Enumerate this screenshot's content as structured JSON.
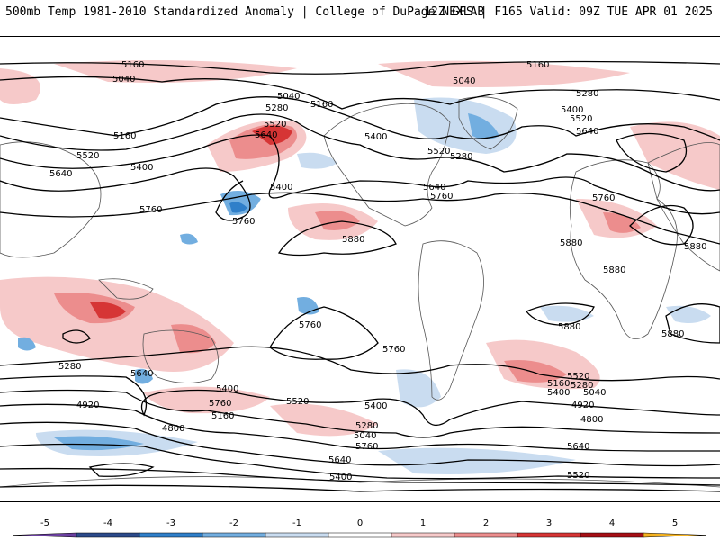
{
  "header": {
    "title": "500mb Temp 1981-2010 Standardized Anomaly | College of DuPage NEXLAB",
    "run_info": "12Z GFS | F165 Valid: 09Z TUE APR 01 2025"
  },
  "colors": {
    "anom": {
      "-5": "#6b3fa0",
      "-4": "#2b4a8a",
      "-3": "#2f7fc9",
      "-2": "#72aee0",
      "-1": "#c9dcf0",
      "1": "#f6c9c9",
      "2": "#ec8d8d",
      "3": "#d63535",
      "4": "#a50f15",
      "5": "#f5b21f"
    }
  },
  "colorbar": {
    "ticks": [
      "-5",
      "-4",
      "-3",
      "-2",
      "-1",
      "0",
      "1",
      "2",
      "3",
      "4",
      "5"
    ],
    "colors": [
      "#6b3fa0",
      "#2b4a8a",
      "#2f7fc9",
      "#72aee0",
      "#c9dcf0",
      "#ffffff",
      "#f6c9c9",
      "#ec8d8d",
      "#d63535",
      "#a50f15",
      "#f5b21f"
    ]
  },
  "contour_labels": [
    "5160",
    "5040",
    "5040",
    "5160",
    "5280",
    "5520",
    "5640",
    "5160",
    "5520",
    "5400",
    "5640",
    "5400",
    "5760",
    "5400",
    "5760",
    "5880",
    "5160",
    "5040",
    "5280",
    "5400",
    "5520",
    "5640",
    "5280",
    "5520",
    "5640",
    "5760",
    "5760",
    "5880",
    "5880",
    "5880",
    "5880",
    "5880",
    "5760",
    "5760",
    "5280",
    "5640",
    "5400",
    "5760",
    "5160",
    "5520",
    "5400",
    "5280",
    "5040",
    "4920",
    "4800",
    "5760",
    "5640",
    "5520",
    "5280",
    "5400",
    "5160",
    "5040",
    "4920",
    "4800",
    "5640",
    "5520",
    "5400"
  ]
}
